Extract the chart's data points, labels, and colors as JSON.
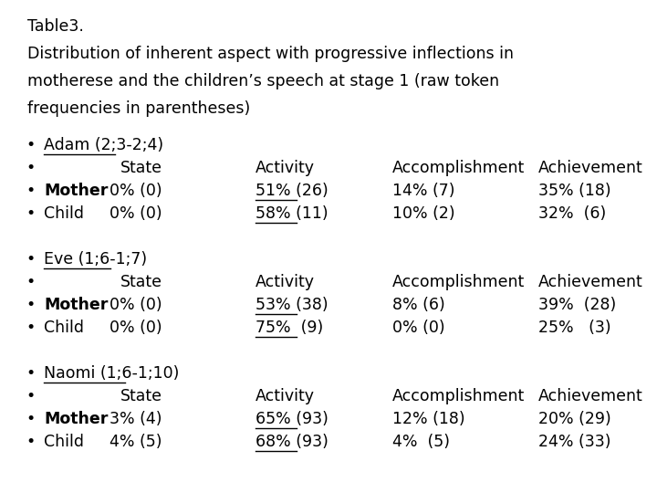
{
  "title_lines": [
    "Table 3.",
    "Distribution of inherent aspect with progressive inflections in",
    "motherese and the children’s speech at stage 1 (raw token",
    "frequencies in parentheses)"
  ],
  "title_raw": "Table3.",
  "sections": [
    {
      "header": "Adam (2;3-2;4)",
      "rows": [
        {
          "label": "",
          "state": "State",
          "activity": "Activity",
          "accomplishment": "Accomplishment",
          "achievement": "Achievement",
          "header_row": true,
          "underline_activity": false,
          "label_bold": false
        },
        {
          "label": "Mother",
          "state": "0% (0)",
          "activity": "51% (26)",
          "accomplishment": "14% (7)",
          "achievement": "35% (18)",
          "header_row": false,
          "underline_activity": true,
          "label_bold": true
        },
        {
          "label": "Child",
          "state": "0% (0)",
          "activity": "58% (11)",
          "accomplishment": "10% (2)",
          "achievement": "32%  (6)",
          "header_row": false,
          "underline_activity": true,
          "label_bold": false
        }
      ]
    },
    {
      "header": "Eve (1;6-1;7)",
      "rows": [
        {
          "label": "",
          "state": "State",
          "activity": "Activity",
          "accomplishment": "Accomplishment",
          "achievement": "Achievement",
          "header_row": true,
          "underline_activity": false,
          "label_bold": false
        },
        {
          "label": "Mother",
          "state": "0% (0)",
          "activity": "53% (38)",
          "accomplishment": "8% (6)",
          "achievement": "39%  (28)",
          "header_row": false,
          "underline_activity": true,
          "label_bold": true
        },
        {
          "label": "Child",
          "state": "0% (0)",
          "activity": "75%  (9)",
          "accomplishment": "0% (0)",
          "achievement": "25%   (3)",
          "header_row": false,
          "underline_activity": true,
          "label_bold": false
        }
      ]
    },
    {
      "header": "Naomi (1;6-1;10)",
      "rows": [
        {
          "label": "",
          "state": "State",
          "activity": "Activity",
          "accomplishment": "Accomplishment",
          "achievement": "Achievement",
          "header_row": true,
          "underline_activity": false,
          "label_bold": false
        },
        {
          "label": "Mother",
          "state": "3% (4)",
          "activity": "65% (93)",
          "accomplishment": "12% (18)",
          "achievement": "20% (29)",
          "header_row": false,
          "underline_activity": true,
          "label_bold": true
        },
        {
          "label": "Child",
          "state": "4% (5)",
          "activity": "68% (93)",
          "accomplishment": "4%  (5)",
          "achievement": "24% (33)",
          "header_row": false,
          "underline_activity": true,
          "label_bold": false
        }
      ]
    }
  ],
  "bg_color": "#ffffff",
  "text_color": "#000000",
  "font_size": 12.5
}
